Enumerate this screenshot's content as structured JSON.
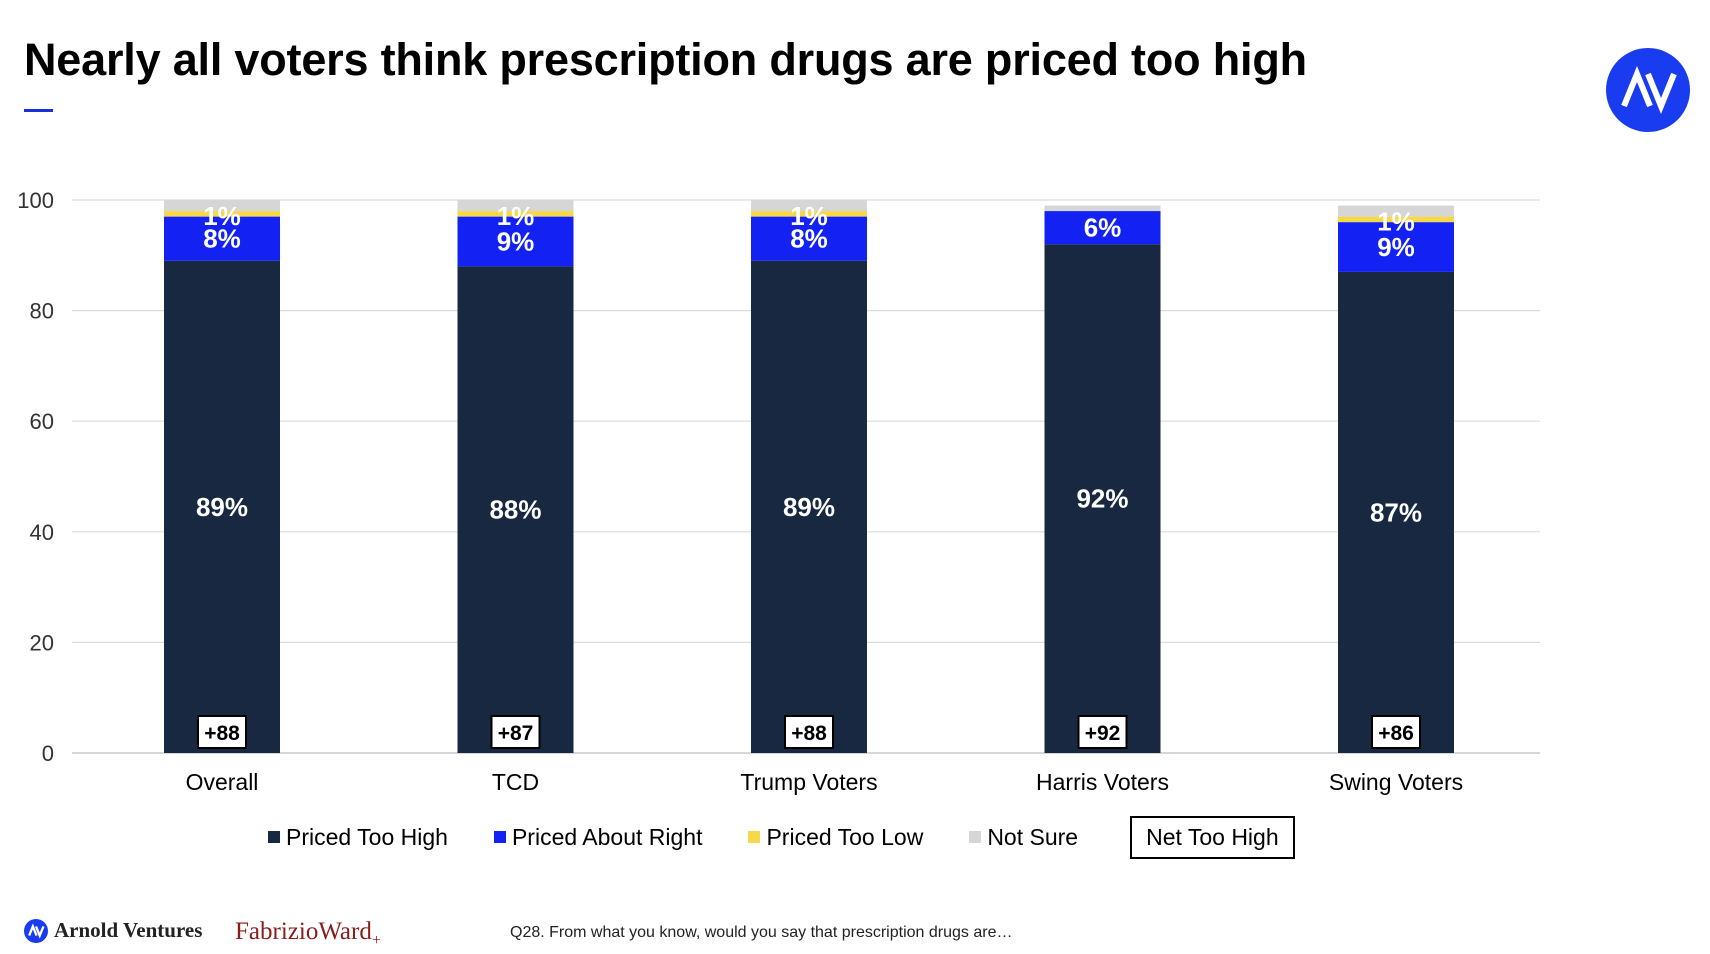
{
  "title": "Nearly all voters think prescription drugs are priced too high",
  "footnote": "Q28. From what you know, would you say that prescription drugs are…",
  "brands": {
    "arnold": "Arnold Ventures",
    "fabrizio": "FabrizioWard",
    "fabrizio_plus": "+"
  },
  "logo_text": "AV",
  "colors": {
    "accent": "#1a2fe0",
    "logo_bg": "#1a3cf0",
    "too_high": "#172840",
    "about_right": "#1322f2",
    "too_low": "#f6d84a",
    "not_sure": "#d6d6d6",
    "fabrizio": "#8a1c1c"
  },
  "chart_data": {
    "type": "bar",
    "stacked": true,
    "categories": [
      "Overall",
      "TCD",
      "Trump Voters",
      "Harris Voters",
      "Swing Voters"
    ],
    "ylim": [
      0,
      100
    ],
    "yticks": [
      "0",
      "20",
      "40",
      "60",
      "80",
      "100"
    ],
    "grid": true,
    "legend_position": "bottom",
    "series": [
      {
        "name": "Priced Too High",
        "values": [
          89,
          88,
          89,
          92,
          87
        ],
        "labels": [
          "89%",
          "88%",
          "89%",
          "92%",
          "87%"
        ],
        "color": "#172840"
      },
      {
        "name": "Priced About Right",
        "values": [
          8,
          9,
          8,
          6,
          9
        ],
        "labels": [
          "8%",
          "9%",
          "8%",
          "6%",
          "9%"
        ],
        "color": "#1322f2"
      },
      {
        "name": "Priced Too Low",
        "values": [
          1,
          1,
          1,
          0,
          1
        ],
        "labels": [
          "1%",
          "1%",
          "1%",
          "",
          "1%"
        ],
        "color": "#f6d84a"
      },
      {
        "name": "Not Sure",
        "values": [
          2,
          2,
          2,
          1,
          2
        ],
        "labels": [
          "",
          "",
          "",
          "",
          ""
        ],
        "color": "#d6d6d6"
      }
    ],
    "net": {
      "name": "Net Too High",
      "labels": [
        "+88",
        "+87",
        "+88",
        "+92",
        "+86"
      ]
    }
  }
}
